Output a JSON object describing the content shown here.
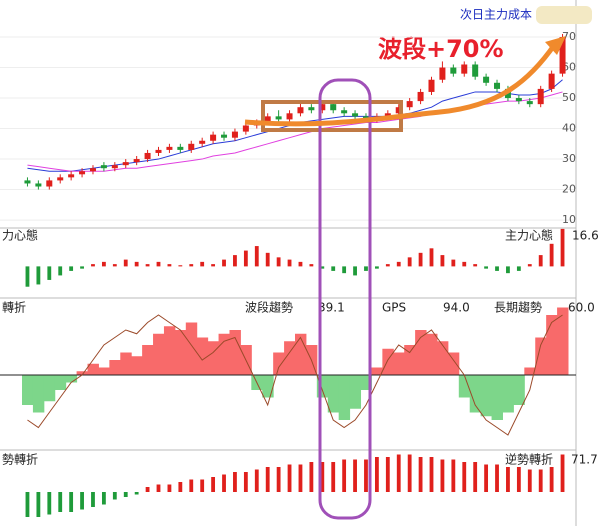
{
  "chart_data": [
    {
      "type": "candlestick",
      "label": "次日主力成本",
      "annotation": "波段+70%",
      "ylim": [
        7.4,
        80.5
      ],
      "yticks": [
        10,
        20,
        30,
        40,
        50,
        60,
        70
      ],
      "grid": true,
      "up_color": "#e0201c",
      "down_color": "#1f9b3a",
      "open": [
        23,
        22,
        21,
        23,
        24,
        25,
        26,
        28,
        27,
        28,
        29,
        30,
        32,
        33,
        34,
        33,
        35,
        36,
        38,
        37,
        39,
        41,
        42,
        44,
        43,
        45,
        47,
        46,
        48,
        46,
        45,
        44,
        43,
        44,
        45,
        47,
        49,
        52,
        56,
        60,
        58,
        61,
        57,
        55,
        53,
        50,
        49,
        48,
        53,
        58
      ],
      "close": [
        22,
        21,
        23,
        24,
        25,
        26,
        27,
        27,
        28,
        29,
        30,
        32,
        33,
        34,
        33,
        35,
        36,
        38,
        37,
        39,
        41,
        42,
        44,
        43,
        45,
        47,
        46,
        48,
        46,
        45,
        44,
        43,
        44,
        45,
        47,
        49,
        52,
        56,
        60,
        58,
        61,
        57,
        55,
        53,
        50,
        49,
        48,
        53,
        58,
        70
      ],
      "high": [
        24,
        23,
        24,
        25,
        26,
        27,
        28,
        29,
        29,
        30,
        31,
        33,
        34,
        35,
        35,
        36,
        37,
        39,
        39,
        40,
        42,
        43,
        45,
        46,
        46,
        49,
        48,
        49,
        49,
        47,
        46,
        45,
        45,
        46,
        48,
        50,
        53,
        57,
        62,
        61,
        62,
        62,
        58,
        56,
        54,
        51,
        50,
        54,
        59,
        71
      ],
      "low": [
        21,
        20,
        20,
        22,
        23,
        24,
        25,
        26,
        26,
        27,
        28,
        29,
        31,
        32,
        32,
        32,
        34,
        35,
        36,
        36,
        38,
        40,
        41,
        42,
        42,
        44,
        45,
        45,
        45,
        44,
        43,
        42,
        42,
        43,
        44,
        46,
        48,
        51,
        55,
        57,
        57,
        56,
        54,
        52,
        49,
        48,
        47,
        47,
        52,
        57
      ],
      "lines": [
        {
          "color": "#2a3cd8",
          "values": [
            27,
            26.5,
            26,
            26,
            26,
            26.5,
            27,
            27.5,
            28,
            28.5,
            29,
            29.5,
            30,
            31,
            32,
            33,
            34,
            35,
            35.5,
            36,
            37,
            38,
            39,
            40,
            41,
            42,
            42.5,
            43,
            43.5,
            44,
            44,
            44,
            44,
            44,
            44.5,
            45,
            46,
            47,
            49,
            50,
            51,
            52,
            52,
            52,
            51.5,
            51,
            51,
            51.5,
            53,
            56
          ]
        },
        {
          "color": "#e040e0",
          "values": [
            28,
            27.5,
            27,
            26.5,
            26,
            26,
            26,
            26,
            26.5,
            27,
            27,
            27.5,
            28,
            28.5,
            29,
            29.5,
            30,
            31,
            31.5,
            32,
            33,
            34,
            35,
            36,
            37,
            38,
            39,
            40,
            40.5,
            41,
            41.5,
            42,
            42,
            42.5,
            43,
            43.5,
            44,
            45,
            45.5,
            46,
            47,
            47.5,
            48,
            48.5,
            49,
            49,
            49.5,
            50,
            51,
            52
          ]
        }
      ]
    },
    {
      "type": "bar",
      "label": "力心態",
      "title": "主力心態",
      "readout": 16.6,
      "ylim": [
        -14,
        17
      ],
      "up_color": "#e0201c",
      "down_color": "#1f9b3a",
      "values": [
        -9,
        -8,
        -6,
        -4,
        -2,
        -1,
        1,
        2,
        1,
        3,
        2,
        1,
        2,
        1,
        0.5,
        1,
        2,
        1,
        3,
        5,
        7,
        9,
        6,
        4,
        3,
        2,
        1,
        -1,
        -2,
        -3,
        -4,
        -2,
        -1,
        1,
        2,
        4,
        6,
        8,
        5,
        3,
        2,
        1,
        -1,
        -2,
        -3,
        -2,
        1,
        5,
        10,
        16.6
      ]
    },
    {
      "type": "area",
      "label": "轉折",
      "ylim": [
        -100,
        100
      ],
      "up_color": "#f86a6a",
      "down_color": "#7dd68a",
      "readouts": [
        {
          "name": "波段趨勢",
          "value": 39.1
        },
        {
          "name": "GPS",
          "value": {
            "value": 94,
            "label": "94.0"
          }
        },
        {
          "name": "長期趨勢",
          "value": {
            "value": 60,
            "label": "60.0"
          }
        }
      ],
      "values": [
        -40,
        -50,
        -35,
        -20,
        -10,
        5,
        15,
        10,
        20,
        30,
        25,
        40,
        55,
        65,
        60,
        70,
        50,
        45,
        55,
        60,
        40,
        -20,
        -30,
        30,
        45,
        55,
        40,
        -30,
        -50,
        -60,
        -45,
        -20,
        10,
        35,
        30,
        40,
        60,
        55,
        45,
        30,
        -30,
        -50,
        -55,
        -60,
        -50,
        -40,
        10,
        50,
        80,
        90
      ],
      "line": {
        "color": "#9b4a2a",
        "values": [
          -60,
          -70,
          -50,
          -30,
          -10,
          0,
          20,
          40,
          50,
          60,
          55,
          70,
          80,
          70,
          60,
          40,
          20,
          30,
          45,
          50,
          20,
          -10,
          -40,
          10,
          30,
          50,
          20,
          -20,
          -60,
          -70,
          -60,
          -40,
          -10,
          20,
          40,
          30,
          50,
          60,
          40,
          20,
          0,
          -40,
          -60,
          -70,
          -80,
          -50,
          -20,
          40,
          70,
          80
        ]
      }
    },
    {
      "type": "bar",
      "label": "勢轉折",
      "title": "逆勢轉折",
      "readout": 71.7,
      "ylim": [
        -12,
        16
      ],
      "up_color": "#e0201c",
      "down_color": "#1f9b3a",
      "values": [
        -10,
        -10,
        -9,
        -8,
        -8,
        -7,
        -6,
        -5,
        -3,
        -2,
        -1,
        2,
        3,
        3,
        4,
        5,
        5,
        6,
        7,
        8,
        8,
        9,
        10,
        10,
        11,
        11,
        12,
        12,
        12,
        13,
        13,
        13,
        14,
        14,
        15,
        15,
        14,
        14,
        13,
        13,
        12,
        12,
        11,
        11,
        10,
        10,
        9,
        9,
        10,
        15
      ]
    }
  ]
}
